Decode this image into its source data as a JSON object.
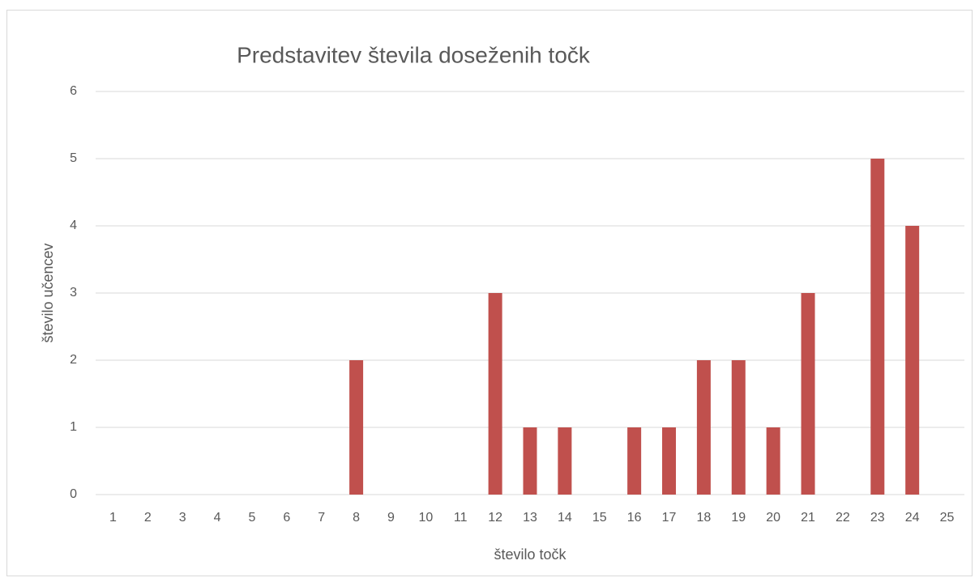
{
  "chart_data": {
    "type": "bar",
    "title": "Predstavitev števila doseženih točk",
    "x_label": "število točk",
    "y_label": "število učencev",
    "categories": [
      "1",
      "2",
      "3",
      "4",
      "5",
      "6",
      "7",
      "8",
      "9",
      "10",
      "11",
      "12",
      "13",
      "14",
      "15",
      "16",
      "17",
      "18",
      "19",
      "20",
      "21",
      "22",
      "23",
      "24",
      "25"
    ],
    "values": [
      0,
      0,
      0,
      0,
      0,
      0,
      0,
      2,
      0,
      0,
      0,
      3,
      1,
      1,
      0,
      1,
      1,
      2,
      2,
      1,
      3,
      0,
      5,
      4,
      0
    ],
    "color": "#c0504d",
    "ylim": [
      0,
      6
    ],
    "yticks": [
      0,
      1,
      2,
      3,
      4,
      5,
      6
    ],
    "grid": true
  }
}
